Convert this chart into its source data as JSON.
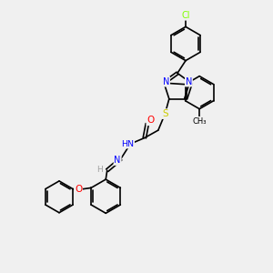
{
  "background_color": "#f0f0f0",
  "atom_colors": {
    "N": "#0000ff",
    "O": "#ff0000",
    "S": "#cccc00",
    "Cl": "#7fff00",
    "C": "#000000",
    "H": "#a0a0a0"
  },
  "bond_color": "#000000",
  "bond_width": 1.2
}
